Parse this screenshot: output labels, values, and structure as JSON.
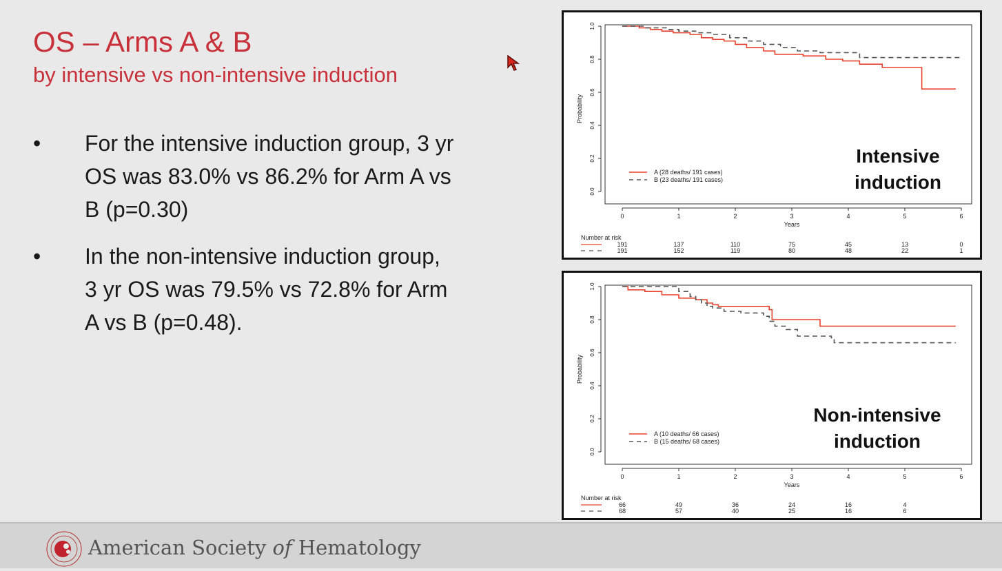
{
  "slide": {
    "title": "OS – Arms A & B",
    "subtitle": "by intensive vs non-intensive induction",
    "bullets": [
      {
        "symbol": "•",
        "text": "For the intensive induction group, 3 yr OS was 83.0% vs 86.2% for Arm A vs B (p=0.30)"
      },
      {
        "symbol": "•",
        "text": "In the non-intensive induction group, 3 yr OS was 79.5% vs 72.8% for Arm A vs B (p=0.48)."
      }
    ]
  },
  "footer": {
    "org_prefix": "American Society ",
    "org_of": "of",
    "org_suffix": " Hematology",
    "logo_text": "AMERICAN SOCIETY OF HEMATOLOGY"
  },
  "colors": {
    "title": "#c8303a",
    "arm_a": "#e8412f",
    "arm_b": "#555555"
  },
  "icons": {
    "cursor": "red-arrow-cursor-icon",
    "logo": "ash-logo-icon"
  },
  "chart_data": [
    {
      "type": "line",
      "step": true,
      "annotation": [
        "Intensive",
        "induction"
      ],
      "ylabel": "Probability",
      "xlabel": "Years",
      "xlim": [
        0,
        6
      ],
      "ylim": [
        0,
        1
      ],
      "xticks": [
        0,
        1,
        2,
        3,
        4,
        5,
        6
      ],
      "yticks": [
        "0.0",
        "0.2",
        "0.4",
        "0.6",
        "0.8",
        "1.0"
      ],
      "legend_position": "bottom-left",
      "series": [
        {
          "name": "A (28 deaths/ 191 cases)",
          "style": "solid",
          "x": [
            0,
            0.3,
            0.5,
            0.7,
            0.9,
            1.2,
            1.4,
            1.6,
            1.8,
            2.0,
            2.2,
            2.5,
            2.7,
            3.2,
            3.6,
            3.9,
            4.2,
            4.6,
            5.3,
            5.9
          ],
          "y": [
            1.0,
            0.99,
            0.98,
            0.97,
            0.96,
            0.95,
            0.93,
            0.92,
            0.91,
            0.89,
            0.87,
            0.85,
            0.83,
            0.82,
            0.8,
            0.79,
            0.77,
            0.75,
            0.62,
            0.62
          ]
        },
        {
          "name": "B (23 deaths/ 191 cases)",
          "style": "dashed",
          "x": [
            0,
            0.4,
            0.8,
            1.0,
            1.3,
            1.6,
            1.9,
            2.2,
            2.5,
            2.8,
            3.1,
            3.5,
            4.0,
            4.2,
            6.0
          ],
          "y": [
            1.0,
            0.99,
            0.98,
            0.97,
            0.96,
            0.95,
            0.93,
            0.91,
            0.89,
            0.87,
            0.85,
            0.84,
            0.84,
            0.81,
            0.81
          ]
        }
      ],
      "risk_table": {
        "label": "Number at risk",
        "times": [
          0,
          1,
          2,
          3,
          4,
          5,
          6
        ],
        "rows": [
          {
            "arm": "A",
            "values": [
              "191",
              "137",
              "110",
              "75",
              "45",
              "13",
              "0"
            ]
          },
          {
            "arm": "B",
            "values": [
              "191",
              "152",
              "119",
              "80",
              "48",
              "22",
              "1"
            ]
          }
        ]
      }
    },
    {
      "type": "line",
      "step": true,
      "annotation": [
        "Non-intensive",
        "induction"
      ],
      "ylabel": "Probability",
      "xlabel": "Years",
      "xlim": [
        0,
        6
      ],
      "ylim": [
        0,
        1
      ],
      "xticks": [
        0,
        1,
        2,
        3,
        4,
        5,
        6
      ],
      "yticks": [
        "0.0",
        "0.2",
        "0.4",
        "0.6",
        "0.8",
        "1.0"
      ],
      "legend_position": "bottom-left",
      "series": [
        {
          "name": "A (10 deaths/ 66 cases)",
          "style": "solid",
          "x": [
            0,
            0.1,
            0.4,
            0.7,
            1.0,
            1.3,
            1.5,
            1.6,
            1.7,
            2.6,
            2.65,
            3.5,
            5.9
          ],
          "y": [
            1.0,
            0.98,
            0.97,
            0.95,
            0.93,
            0.92,
            0.9,
            0.89,
            0.88,
            0.86,
            0.8,
            0.76,
            0.76
          ]
        },
        {
          "name": "B (15 deaths/ 68 cases)",
          "style": "dashed",
          "x": [
            0,
            1.0,
            1.2,
            1.3,
            1.4,
            1.5,
            1.6,
            1.8,
            2.1,
            2.5,
            2.6,
            2.7,
            2.9,
            3.1,
            3.7,
            3.75,
            5.9
          ],
          "y": [
            1.0,
            0.97,
            0.94,
            0.92,
            0.9,
            0.88,
            0.87,
            0.85,
            0.84,
            0.82,
            0.79,
            0.76,
            0.74,
            0.7,
            0.69,
            0.66,
            0.66
          ]
        }
      ],
      "risk_table": {
        "label": "Number at risk",
        "times": [
          0,
          1,
          2,
          3,
          4,
          5
        ],
        "rows": [
          {
            "arm": "A",
            "values": [
              "66",
              "49",
              "36",
              "24",
              "16",
              "4"
            ]
          },
          {
            "arm": "B",
            "values": [
              "68",
              "57",
              "40",
              "25",
              "16",
              "6"
            ]
          }
        ]
      }
    }
  ]
}
